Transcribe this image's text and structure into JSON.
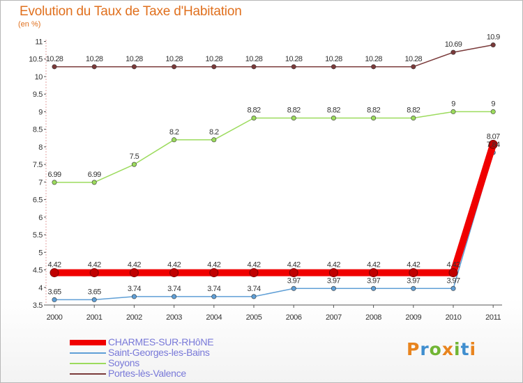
{
  "title": "Evolution du Taux de Taxe d'Habitation",
  "unit_label": "(en %)",
  "brand": {
    "text": "Proxiti",
    "colors": [
      "#e8841e",
      "#3f8ecf",
      "#71b534",
      "#e8841e",
      "#71b534",
      "#3f8ecf",
      "#e8841e"
    ]
  },
  "chart_data": {
    "type": "line",
    "title": "Evolution du Taux de Taxe d'Habitation",
    "ylabel": "(en %)",
    "xlabel": "",
    "categories": [
      "2000",
      "2001",
      "2002",
      "2003",
      "2004",
      "2005",
      "2006",
      "2007",
      "2008",
      "2009",
      "2010",
      "2011"
    ],
    "ylim": [
      3.5,
      11
    ],
    "yticks": [
      "3.5",
      "4",
      "4.5",
      "5",
      "5.5",
      "6",
      "6.5",
      "7",
      "7.5",
      "8",
      "8.5",
      "9",
      "9.5",
      "10",
      "10.5",
      "11"
    ],
    "grid": false,
    "legend_position": "bottom-left",
    "series": [
      {
        "name": "CHARMES-SUR-RHôNE",
        "color": "#f00000",
        "values": [
          4.42,
          4.42,
          4.42,
          4.42,
          4.42,
          4.42,
          4.42,
          4.42,
          4.42,
          4.42,
          4.42,
          8.07
        ],
        "labels": [
          "4.42",
          "4.42",
          "4.42",
          "4.42",
          "4.42",
          "4.42",
          "4.42",
          "4.42",
          "4.42",
          "4.42",
          "4.42",
          "8.07"
        ]
      },
      {
        "name": "Saint-Georges-les-Bains",
        "color": "#5f9fd6",
        "values": [
          3.65,
          3.65,
          3.74,
          3.74,
          3.74,
          3.74,
          3.97,
          3.97,
          3.97,
          3.97,
          3.97,
          7.84
        ],
        "labels": [
          "3.65",
          "3.65",
          "3.74",
          "3.74",
          "3.74",
          "3.74",
          "3.97",
          "3.97",
          "3.97",
          "3.97",
          "3.97",
          "7.84"
        ]
      },
      {
        "name": "Soyons",
        "color": "#9cdb5d",
        "values": [
          6.99,
          6.99,
          7.5,
          8.2,
          8.2,
          8.82,
          8.82,
          8.82,
          8.82,
          8.82,
          9,
          9
        ],
        "labels": [
          "6.99",
          "6.99",
          "7.5",
          "8.2",
          "8.2",
          "8.82",
          "8.82",
          "8.82",
          "8.82",
          "8.82",
          "9",
          "9"
        ]
      },
      {
        "name": "Portes-lès-Valence",
        "color": "#7a3a3a",
        "values": [
          10.28,
          10.28,
          10.28,
          10.28,
          10.28,
          10.28,
          10.28,
          10.28,
          10.28,
          10.28,
          10.69,
          10.9
        ],
        "labels": [
          "10.28",
          "10.28",
          "10.28",
          "10.28",
          "10.28",
          "10.28",
          "10.28",
          "10.28",
          "10.28",
          "10.28",
          "10.69",
          "10.9"
        ]
      }
    ]
  }
}
